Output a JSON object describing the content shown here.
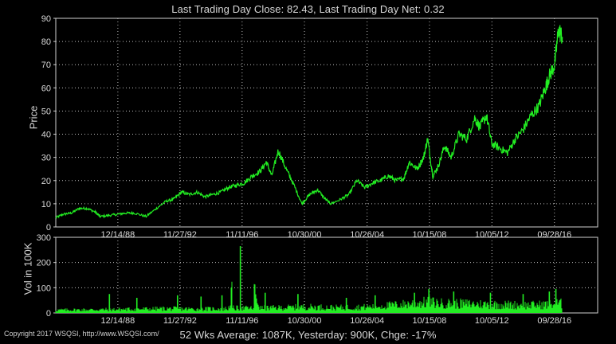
{
  "title": "Last Trading Day Close: 82.43, Last Trading Day Net: 0.32",
  "footer": "52 Wks Average: 1087K, Yesterday: 900K, Chge: -17%",
  "copyright": "Copyright 2017 WSQSI, http://www.WSQSI.com/",
  "colors": {
    "background": "#000000",
    "series": "#22ee22",
    "axis": "#d0d0d0",
    "grid": "#bdbdbd"
  },
  "chart_data": [
    {
      "type": "line",
      "ylabel": "Price",
      "xlabel": "",
      "grid": true,
      "ylim": [
        0,
        90
      ],
      "yticks": [
        0,
        10,
        20,
        30,
        40,
        50,
        60,
        70,
        80,
        90
      ],
      "xlim": [
        "1985-01-01",
        "2019-06-30"
      ],
      "xticks": [
        "12/14/88",
        "11/27/92",
        "11/11/96",
        "10/30/00",
        "10/26/04",
        "10/15/08",
        "10/05/12",
        "09/28/16"
      ],
      "series": [
        {
          "x": [
            "1985-01-01",
            "1985-07-01",
            "1986-01-01",
            "1986-07-01",
            "1987-01-01",
            "1987-07-01",
            "1987-11-01",
            "1988-06-01",
            "1989-01-01",
            "1989-07-01",
            "1990-01-01",
            "1990-10-01",
            "1991-06-01",
            "1992-01-01",
            "1992-07-01",
            "1993-01-01",
            "1993-07-01",
            "1994-01-01",
            "1994-07-01",
            "1995-01-01",
            "1995-07-01",
            "1996-01-01",
            "1996-07-01",
            "1997-01-01",
            "1997-07-01",
            "1998-01-01",
            "1998-06-01",
            "1998-10-01",
            "1999-03-01",
            "1999-09-01",
            "2000-03-01",
            "2000-09-01",
            "2001-03-01",
            "2001-09-01",
            "2002-03-01",
            "2002-07-01",
            "2003-03-01",
            "2003-09-01",
            "2004-03-01",
            "2004-09-01",
            "2005-03-01",
            "2005-09-01",
            "2006-03-01",
            "2006-09-01",
            "2007-03-01",
            "2007-07-01",
            "2008-01-01",
            "2008-06-01",
            "2008-09-01",
            "2009-01-01",
            "2009-05-01",
            "2009-10-01",
            "2010-03-01",
            "2010-09-01",
            "2011-03-01",
            "2011-09-01",
            "2012-01-01",
            "2012-06-01",
            "2012-10-01",
            "2013-04-01",
            "2013-10-01",
            "2014-04-01",
            "2014-10-01",
            "2015-04-01",
            "2015-10-01",
            "2016-03-01",
            "2016-06-01",
            "2016-10-01",
            "2017-01-01",
            "2017-04-01"
          ],
          "y": [
            4,
            5.5,
            6,
            8,
            8,
            6.5,
            4.5,
            5,
            5.5,
            6,
            6,
            4.5,
            8,
            11,
            12,
            15,
            14,
            15,
            13,
            14,
            15,
            17,
            18,
            19,
            22,
            24,
            28,
            22,
            33,
            25,
            18,
            10,
            14,
            16,
            12,
            10,
            12,
            14,
            20,
            17,
            19,
            20,
            22,
            20,
            21,
            28,
            25,
            30,
            38,
            22,
            26,
            35,
            30,
            40,
            38,
            47,
            43,
            48,
            36,
            34,
            32,
            38,
            42,
            48,
            52,
            60,
            65,
            70,
            85,
            82
          ]
        }
      ]
    },
    {
      "type": "bar",
      "ylabel": "Vol in 100K",
      "xlabel": "",
      "grid": true,
      "ylim": [
        0,
        300
      ],
      "yticks": [
        0,
        100,
        200,
        300
      ],
      "xlim": [
        "1985-01-01",
        "2019-06-30"
      ],
      "xticks": [
        "12/14/88",
        "11/27/92",
        "11/11/96",
        "10/30/00",
        "10/26/04",
        "10/15/08",
        "10/05/12",
        "09/28/16"
      ],
      "series": [
        {
          "x": [
            "1985-01-01",
            "1988-01-01",
            "1990-06-01",
            "1992-01-01",
            "1994-01-01",
            "1996-01-01",
            "1996-10-01",
            "1998-01-01",
            "1999-06-01",
            "2001-01-01",
            "2003-01-01",
            "2005-01-01",
            "2007-01-01",
            "2008-10-01",
            "2009-06-01",
            "2011-01-01",
            "2013-01-01",
            "2015-01-01",
            "2016-06-01",
            "2017-01-01",
            "2017-04-01"
          ],
          "y": [
            12,
            14,
            16,
            18,
            16,
            18,
            265,
            20,
            22,
            25,
            22,
            25,
            35,
            45,
            40,
            38,
            35,
            32,
            35,
            40,
            38
          ],
          "spikes": [
            {
              "x": "1988-06-01",
              "y": 75
            },
            {
              "x": "1990-03-01",
              "y": 60
            },
            {
              "x": "1992-10-01",
              "y": 70
            },
            {
              "x": "1994-04-01",
              "y": 65
            },
            {
              "x": "1995-08-01",
              "y": 70
            },
            {
              "x": "1996-10-01",
              "y": 265
            },
            {
              "x": "1998-05-01",
              "y": 80
            },
            {
              "x": "2000-06-01",
              "y": 75
            },
            {
              "x": "2003-07-01",
              "y": 60
            },
            {
              "x": "2005-05-01",
              "y": 70
            },
            {
              "x": "2007-11-01",
              "y": 80
            },
            {
              "x": "2008-10-01",
              "y": 95
            },
            {
              "x": "2010-05-01",
              "y": 85
            },
            {
              "x": "2012-09-01",
              "y": 80
            },
            {
              "x": "2014-10-01",
              "y": 75
            },
            {
              "x": "2016-06-01",
              "y": 85
            },
            {
              "x": "2016-11-01",
              "y": 95
            }
          ]
        }
      ]
    }
  ]
}
